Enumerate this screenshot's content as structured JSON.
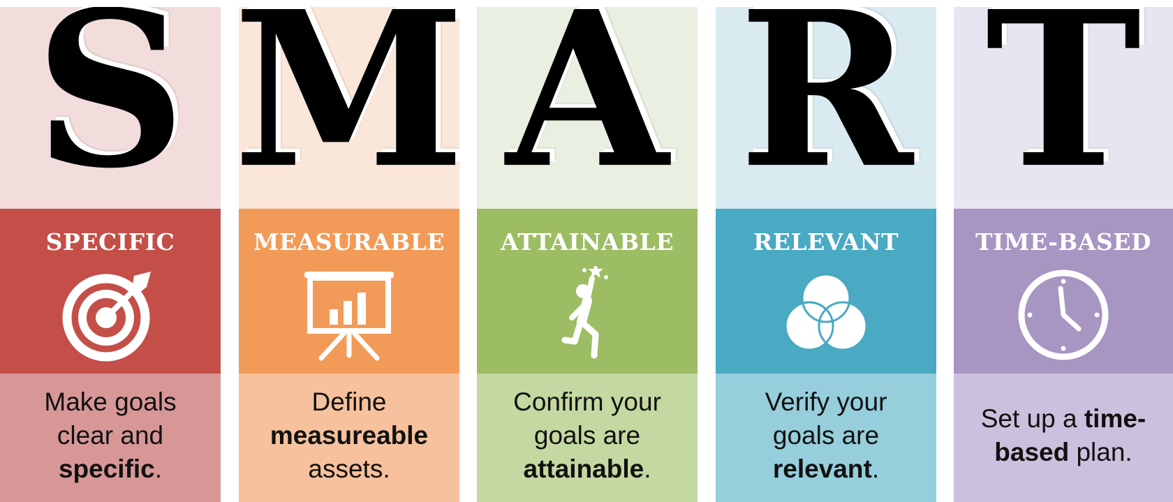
{
  "columns": [
    {
      "letter": "S",
      "label": "SPECIFIC",
      "icon": "target-icon",
      "colors": {
        "top": "#f2dcdc",
        "band": "#c44f48",
        "bottom": "#d89797"
      },
      "desc": [
        [
          "Make goals"
        ],
        [
          "clear and"
        ],
        [
          {
            "b": "specific"
          },
          "."
        ]
      ]
    },
    {
      "letter": "M",
      "label": "MEASURABLE",
      "icon": "presentation-chart-icon",
      "colors": {
        "top": "#fbe6da",
        "band": "#f29b58",
        "bottom": "#f6c19c"
      },
      "desc": [
        [
          "Define"
        ],
        [
          {
            "b": "measureable"
          }
        ],
        [
          "assets."
        ]
      ]
    },
    {
      "letter": "A",
      "label": "ATTAINABLE",
      "icon": "reaching-person-icon",
      "colors": {
        "top": "#e9efe1",
        "band": "#9cbd63",
        "bottom": "#c4d8a1"
      },
      "desc": [
        [
          "Confirm your"
        ],
        [
          "goals are"
        ],
        [
          {
            "b": "attainable"
          },
          "."
        ]
      ]
    },
    {
      "letter": "R",
      "label": "RELEVANT",
      "icon": "venn-diagram-icon",
      "colors": {
        "top": "#d9eaf1",
        "band": "#4aa9c3",
        "bottom": "#96cedc"
      },
      "desc": [
        [
          "Verify your"
        ],
        [
          "goals are"
        ],
        [
          {
            "b": "relevant"
          },
          "."
        ]
      ]
    },
    {
      "letter": "T",
      "label": "TIME-BASED",
      "icon": "clock-icon",
      "colors": {
        "top": "#e8e4f0",
        "band": "#a795c2",
        "bottom": "#cbc0dd"
      },
      "desc": [
        [
          "Set up a ",
          {
            "b": "time-"
          }
        ],
        [
          {
            "b": "based"
          },
          " plan."
        ]
      ]
    }
  ]
}
